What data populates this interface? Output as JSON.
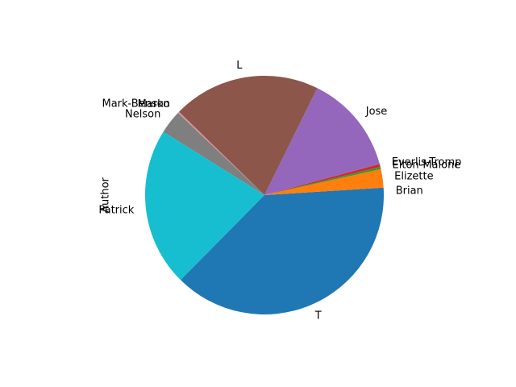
{
  "chart_data": {
    "type": "pie",
    "ylabel": "Author",
    "start_angle_deg": 0,
    "direction": "counterclockwise",
    "slices": [
      {
        "label": "Brian",
        "value": 1.0,
        "color": "#1f77b4"
      },
      {
        "label": "Elizette",
        "value": 2.5,
        "color": "#ff7f0e"
      },
      {
        "label": "Elton-Malone",
        "value": 0.3,
        "color": "#2ca02c"
      },
      {
        "label": "Everlis-Tromp",
        "value": 0.4,
        "color": "#d62728"
      },
      {
        "label": "Jose",
        "value": 13.5,
        "color": "#9467bd"
      },
      {
        "label": "L",
        "value": 20.0,
        "color": "#8c564b"
      },
      {
        "label": "Mark-Benson",
        "value": 0.15,
        "color": "#e377c2"
      },
      {
        "label": "Marko",
        "value": 0.05,
        "color": "#bcbd22"
      },
      {
        "label": "Nelson",
        "value": 3.2,
        "color": "#7f7f7f"
      },
      {
        "label": "Patrick",
        "value": 21.5,
        "color": "#17becf"
      },
      {
        "label": "T",
        "value": 37.4,
        "color": "#1f77b4"
      }
    ]
  }
}
